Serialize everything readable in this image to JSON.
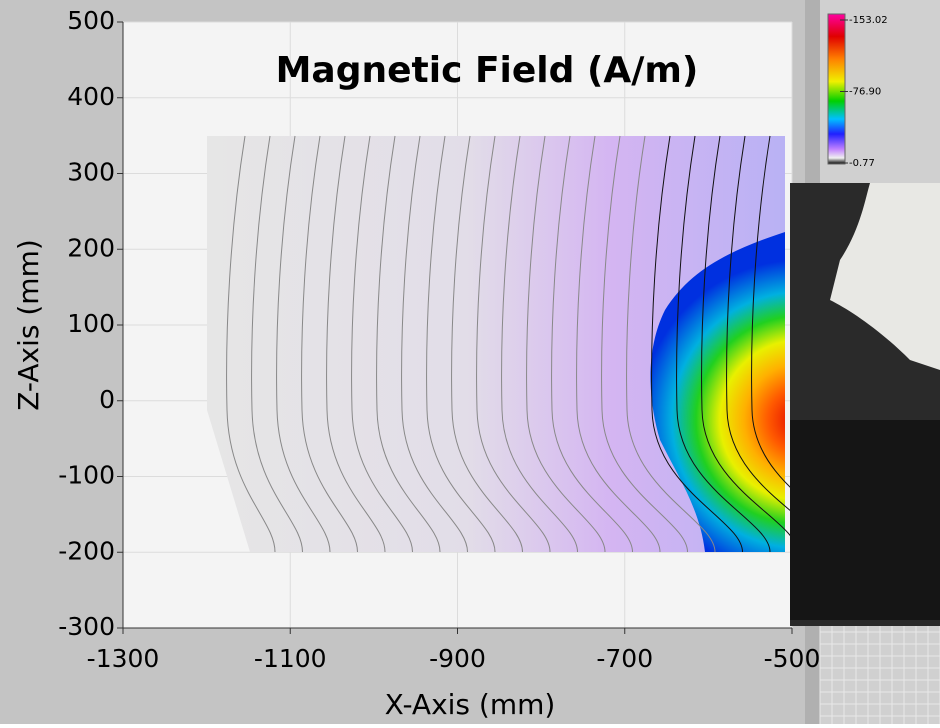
{
  "chart_data": {
    "type": "contour",
    "title": "Magnetic Field (A/m)",
    "x_label": "X-Axis (mm)",
    "y_label": "Z-Axis (mm)",
    "xlim": [
      -1300,
      -500
    ],
    "xticks": [
      -1300,
      -1100,
      -900,
      -700,
      -500
    ],
    "ylim": [
      -300,
      500
    ],
    "yticks": [
      -300,
      -200,
      -100,
      0,
      100,
      200,
      300,
      400,
      500
    ],
    "grid": true,
    "colorbar_ticks": [
      -153.02,
      {
        "value": -76.9,
        "label": "-76.90"
      },
      -0.77
    ]
  }
}
